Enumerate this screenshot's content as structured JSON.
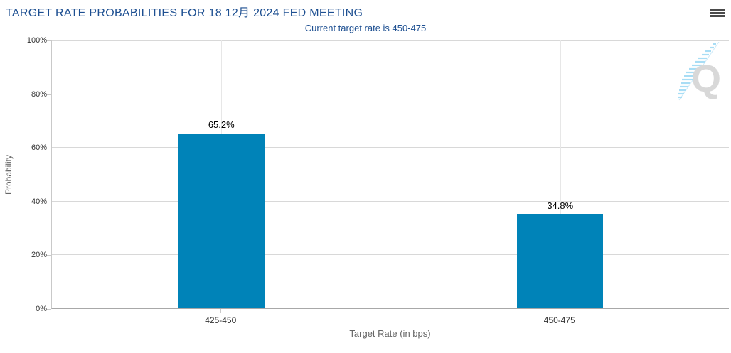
{
  "header": {
    "title": "TARGET RATE PROBABILITIES FOR 18 12月 2024 FED MEETING",
    "subtitle": "Current target rate is 450-475"
  },
  "menu": {
    "icon": "hamburger-menu-icon"
  },
  "watermark": {
    "letter": "Q"
  },
  "chart_data": {
    "type": "bar",
    "title": "TARGET RATE PROBABILITIES FOR 18 12月 2024 FED MEETING",
    "subtitle": "Current target rate is 450-475",
    "categories": [
      "425-450",
      "450-475"
    ],
    "values": [
      65.2,
      34.8
    ],
    "data_labels": [
      "65.2%",
      "34.8%"
    ],
    "xlabel": "Target Rate (in bps)",
    "ylabel": "Probability",
    "ylim": [
      0,
      100
    ],
    "yticks": [
      0,
      20,
      40,
      60,
      80,
      100
    ],
    "ytick_labels": [
      "0%",
      "20%",
      "40%",
      "60%",
      "80%",
      "100%"
    ],
    "grid": true,
    "legend": false,
    "bar_color": "#0083b8"
  },
  "colors": {
    "title": "#1d4f91",
    "subtitle": "#1d4f91",
    "bar": "#0083b8",
    "gridline": "#d8d8d8",
    "axis_line": "#a8a8a8",
    "tick_label": "#333333",
    "axis_title": "#666666",
    "data_label": "#000000",
    "menu_icon": "#4a4a4a",
    "watermark_q": "#d8d8d8",
    "watermark_dash": "#a8ddf5"
  }
}
